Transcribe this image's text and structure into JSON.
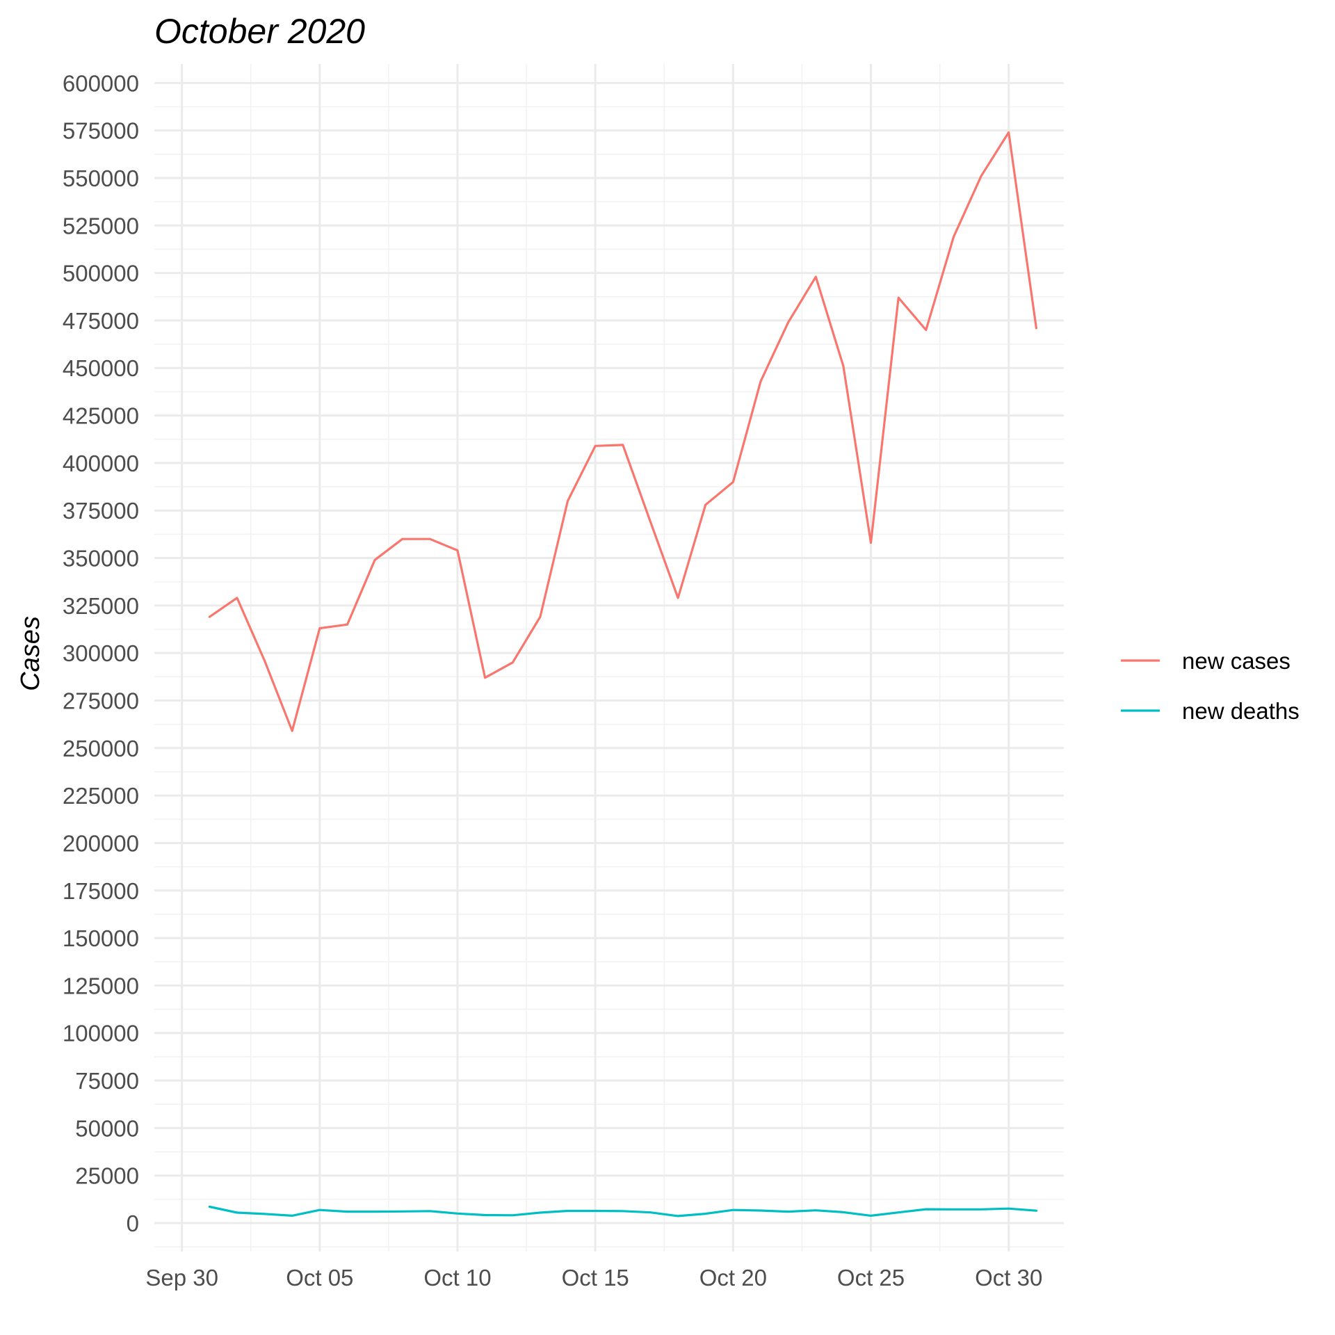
{
  "chart_data": {
    "type": "line",
    "title": "October 2020",
    "xlabel": "",
    "ylabel": "Cases",
    "x_tick_labels": [
      "Sep 30",
      "Oct 05",
      "Oct 10",
      "Oct 15",
      "Oct 20",
      "Oct 25",
      "Oct 30"
    ],
    "y_tick_labels": [
      "0",
      "25000",
      "50000",
      "75000",
      "100000",
      "125000",
      "150000",
      "175000",
      "200000",
      "225000",
      "250000",
      "275000",
      "300000",
      "325000",
      "350000",
      "375000",
      "400000",
      "425000",
      "450000",
      "475000",
      "500000",
      "525000",
      "550000",
      "575000",
      "600000"
    ],
    "ylim": [
      -15000,
      610000
    ],
    "xlim": [
      "2020-09-29",
      "2020-11-01"
    ],
    "grid": true,
    "legend_position": "right",
    "x": [
      "2020-10-01",
      "2020-10-02",
      "2020-10-03",
      "2020-10-04",
      "2020-10-05",
      "2020-10-06",
      "2020-10-07",
      "2020-10-08",
      "2020-10-09",
      "2020-10-10",
      "2020-10-11",
      "2020-10-12",
      "2020-10-13",
      "2020-10-14",
      "2020-10-15",
      "2020-10-16",
      "2020-10-17",
      "2020-10-18",
      "2020-10-19",
      "2020-10-20",
      "2020-10-21",
      "2020-10-22",
      "2020-10-23",
      "2020-10-24",
      "2020-10-25",
      "2020-10-26",
      "2020-10-27",
      "2020-10-28",
      "2020-10-29",
      "2020-10-30",
      "2020-10-31"
    ],
    "series": [
      {
        "name": "new cases",
        "color": "#F8766D",
        "values": [
          319000,
          329000,
          296000,
          259000,
          313000,
          315000,
          349000,
          360000,
          360000,
          354000,
          287000,
          295000,
          319000,
          380000,
          409000,
          409500,
          369000,
          329000,
          378000,
          390000,
          443000,
          474000,
          498000,
          451000,
          358000,
          487000,
          470000,
          519000,
          551000,
          574000,
          471000
        ]
      },
      {
        "name": "new deaths",
        "color": "#00BFC4",
        "values": [
          8600,
          5500,
          4800,
          3900,
          6900,
          6000,
          6000,
          6100,
          6300,
          5000,
          4200,
          4100,
          5500,
          6400,
          6400,
          6300,
          5600,
          3700,
          4900,
          6900,
          6600,
          6000,
          6700,
          5700,
          3900,
          5600,
          7300,
          7200,
          7200,
          7600,
          6500
        ]
      }
    ]
  }
}
